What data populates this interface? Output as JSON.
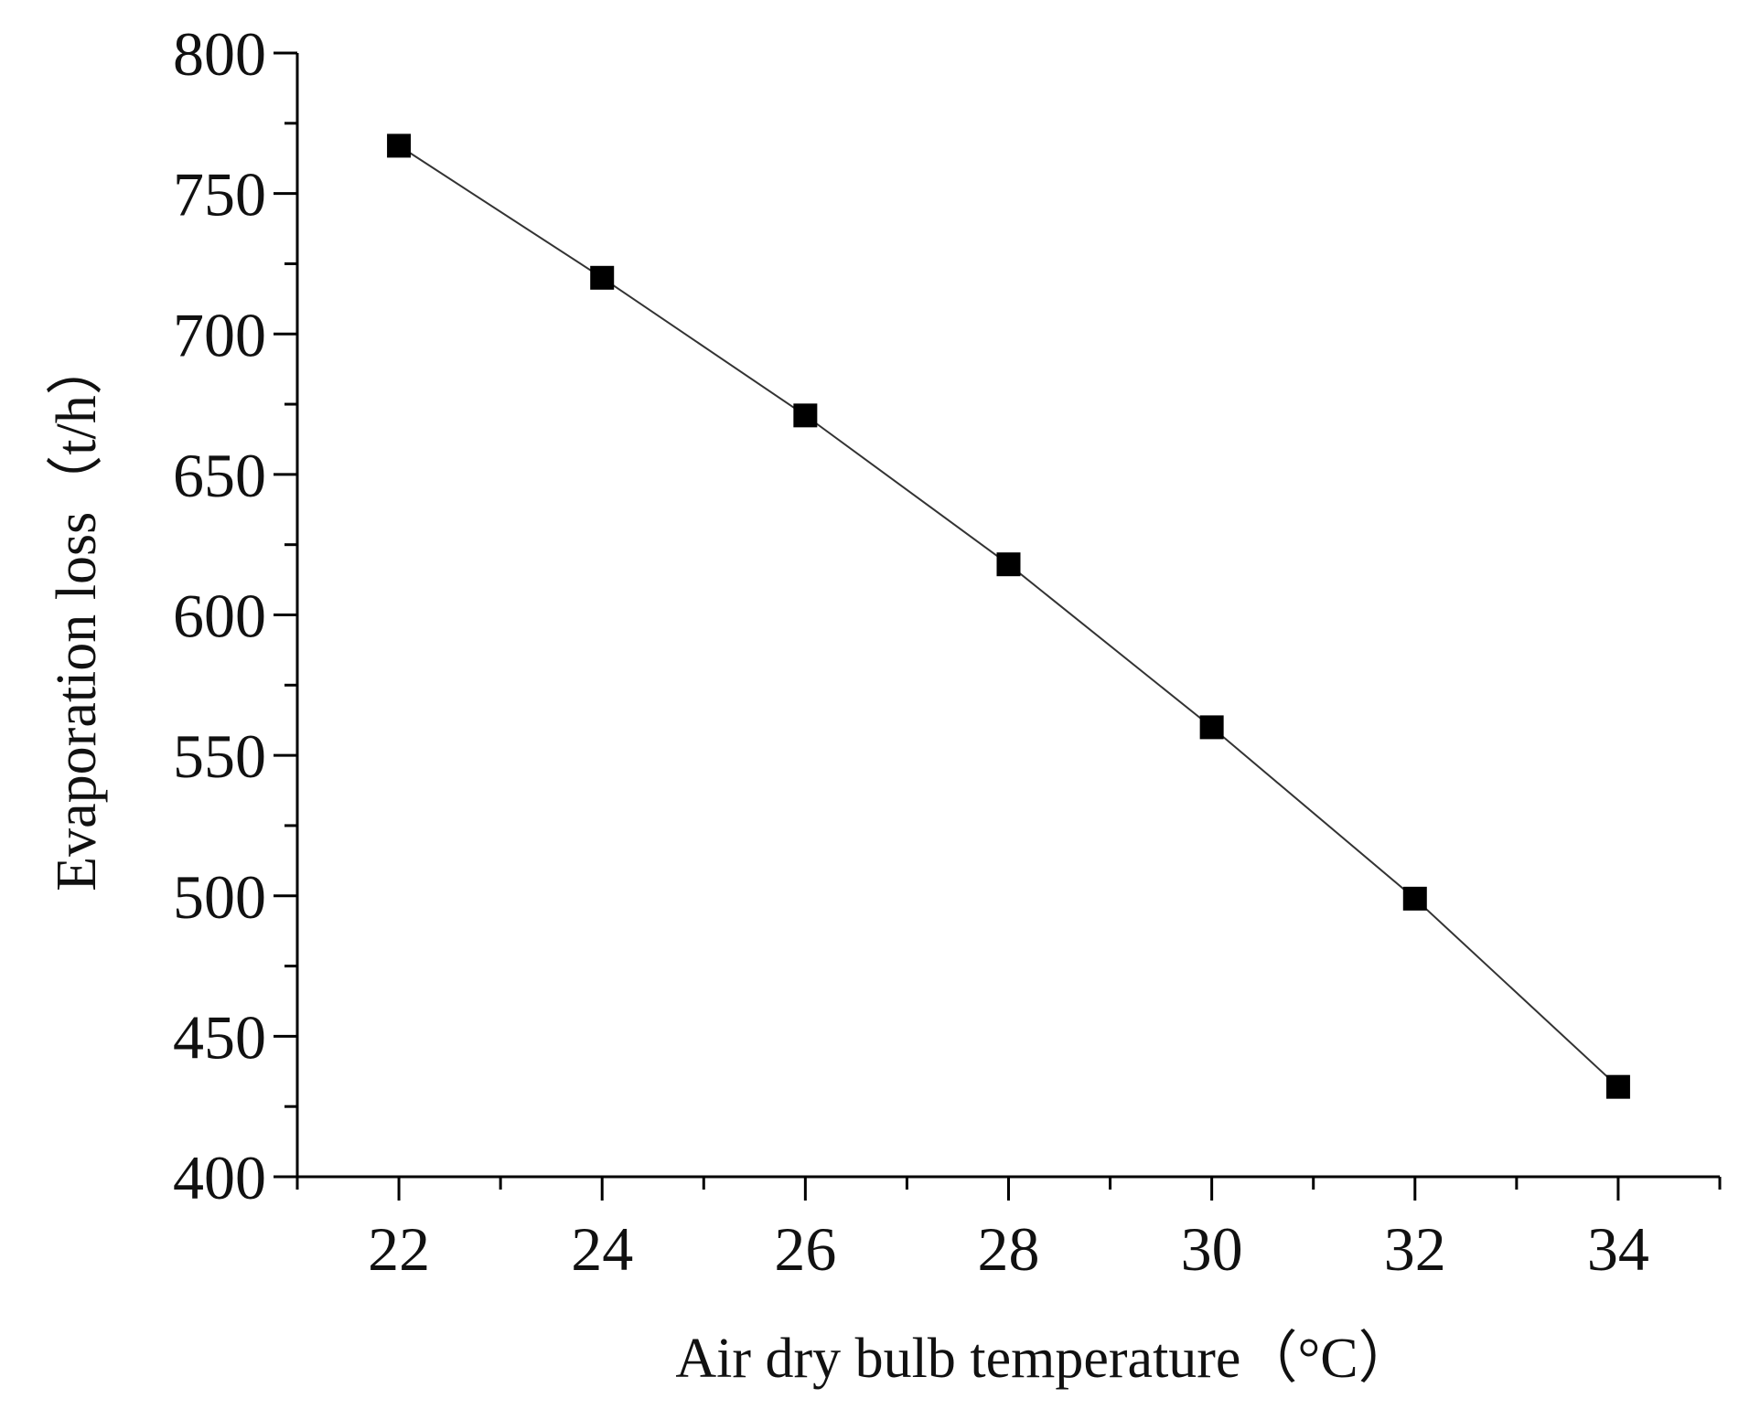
{
  "chart_data": {
    "type": "line",
    "title": "",
    "xlabel": "Air dry bulb temperature（°C）",
    "ylabel": "Evaporation loss（t/h）",
    "xlim": [
      21,
      35
    ],
    "ylim": [
      400,
      800
    ],
    "x_ticks": [
      22,
      24,
      26,
      28,
      30,
      32,
      34
    ],
    "x_minor_ticks": [
      21,
      23,
      25,
      27,
      29,
      31,
      33,
      35
    ],
    "y_ticks": [
      400,
      450,
      500,
      550,
      600,
      650,
      700,
      750,
      800
    ],
    "y_minor_ticks": [
      425,
      475,
      525,
      575,
      625,
      675,
      725,
      775
    ],
    "grid": false,
    "series": [
      {
        "marker": "square",
        "color": "#000000",
        "x": [
          22,
          24,
          26,
          28,
          30,
          32,
          34
        ],
        "y": [
          767,
          720,
          671,
          618,
          560,
          499,
          432
        ]
      }
    ]
  }
}
